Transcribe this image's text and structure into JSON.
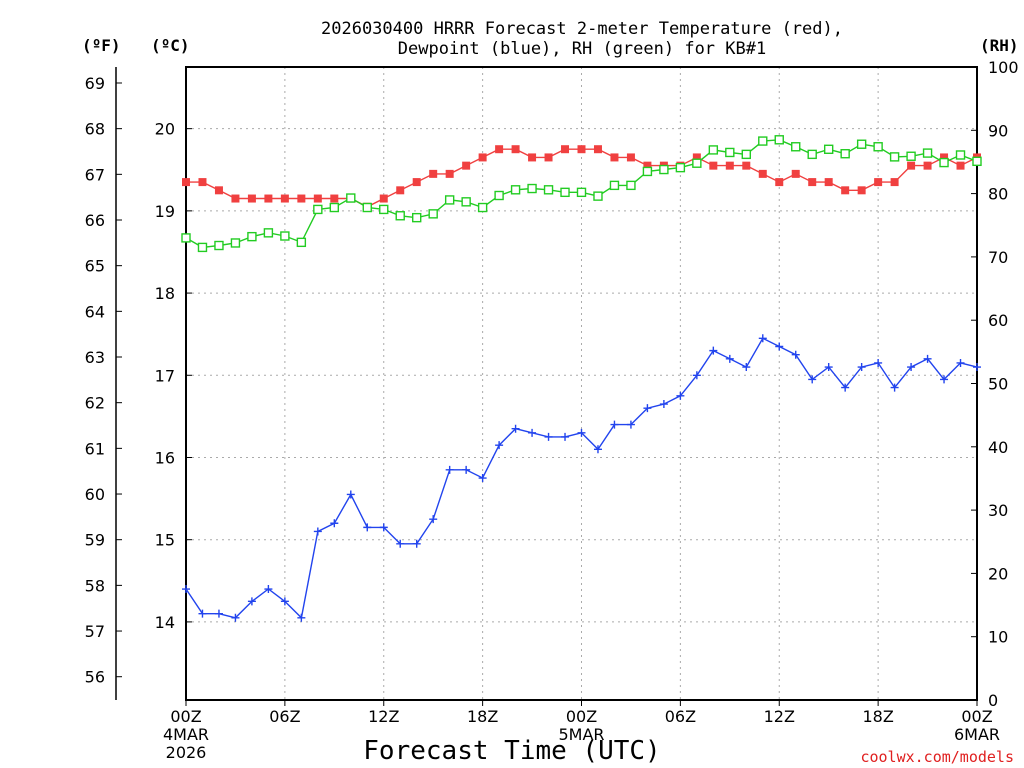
{
  "chart_data": {
    "type": "line",
    "title_line1": "2026030400 HRRR Forecast 2-meter Temperature (red),",
    "title_line2": "Dewpoint (blue), RH (green) for KB#1",
    "xlabel": "Forecast Time (UTC)",
    "credit": "coolwx.com/models",
    "units": {
      "fahrenheit": "(ºF)",
      "celsius": "(ºC)",
      "rh": "(RH)"
    },
    "x_ticks": [
      {
        "hour": 0,
        "label": "00Z",
        "sub1": "4MAR",
        "sub2": "2026"
      },
      {
        "hour": 6,
        "label": "06Z",
        "sub1": "",
        "sub2": ""
      },
      {
        "hour": 12,
        "label": "12Z",
        "sub1": "",
        "sub2": ""
      },
      {
        "hour": 18,
        "label": "18Z",
        "sub1": "",
        "sub2": ""
      },
      {
        "hour": 24,
        "label": "00Z",
        "sub1": "5MAR",
        "sub2": ""
      },
      {
        "hour": 30,
        "label": "06Z",
        "sub1": "",
        "sub2": ""
      },
      {
        "hour": 36,
        "label": "12Z",
        "sub1": "",
        "sub2": ""
      },
      {
        "hour": 42,
        "label": "18Z",
        "sub1": "",
        "sub2": ""
      },
      {
        "hour": 48,
        "label": "00Z",
        "sub1": "6MAR",
        "sub2": ""
      }
    ],
    "xlim": [
      0,
      48
    ],
    "celsius_axis": {
      "ylim": [
        13.05,
        20.75
      ],
      "ticks": [
        "14",
        "15",
        "16",
        "17",
        "18",
        "19",
        "20"
      ]
    },
    "fahrenheit_axis": {
      "ylim": [
        55.49,
        69.35
      ],
      "ticks": [
        "56",
        "57",
        "58",
        "59",
        "60",
        "61",
        "62",
        "63",
        "64",
        "65",
        "66",
        "67",
        "68",
        "69"
      ]
    },
    "rh_axis": {
      "ylim": [
        0,
        100
      ],
      "ticks": [
        "0",
        "10",
        "20",
        "30",
        "40",
        "50",
        "60",
        "70",
        "80",
        "90",
        "100"
      ]
    },
    "series": [
      {
        "name": "2-meter Temperature",
        "color": "#f04040",
        "marker": "filled-square",
        "axis": "celsius",
        "values": [
          19.35,
          19.35,
          19.25,
          19.15,
          19.15,
          19.15,
          19.15,
          19.15,
          19.15,
          19.15,
          19.15,
          19.05,
          19.15,
          19.25,
          19.35,
          19.45,
          19.45,
          19.55,
          19.65,
          19.75,
          19.75,
          19.65,
          19.65,
          19.75,
          19.75,
          19.75,
          19.65,
          19.65,
          19.55,
          19.55,
          19.55,
          19.65,
          19.55,
          19.55,
          19.55,
          19.45,
          19.35,
          19.45,
          19.35,
          19.35,
          19.25,
          19.25,
          19.35,
          19.35,
          19.55,
          19.55,
          19.65,
          19.55,
          19.65
        ]
      },
      {
        "name": "Dewpoint",
        "color": "#2244ee",
        "marker": "plus",
        "axis": "celsius",
        "values": [
          14.4,
          14.1,
          14.1,
          14.05,
          14.25,
          14.4,
          14.25,
          14.05,
          15.1,
          15.2,
          15.55,
          15.15,
          15.15,
          14.95,
          14.95,
          15.25,
          15.85,
          15.85,
          15.75,
          16.15,
          16.35,
          16.3,
          16.25,
          16.25,
          16.3,
          16.1,
          16.4,
          16.4,
          16.6,
          16.65,
          16.75,
          17.0,
          17.3,
          17.2,
          17.1,
          17.45,
          17.35,
          17.25,
          16.95,
          17.1,
          16.85,
          17.1,
          17.15,
          16.85,
          17.1,
          17.2,
          16.95,
          17.15,
          17.1
        ]
      },
      {
        "name": "RH",
        "color": "#22cc22",
        "marker": "open-square",
        "axis": "rh",
        "values": [
          73,
          71.5,
          71.8,
          72.2,
          73.2,
          73.8,
          73.3,
          72.3,
          77.5,
          77.8,
          79.3,
          77.8,
          77.5,
          76.5,
          76.2,
          76.8,
          79,
          78.7,
          77.8,
          79.7,
          80.6,
          80.8,
          80.6,
          80.2,
          80.2,
          79.6,
          81.3,
          81.3,
          83.5,
          83.8,
          84.1,
          84.8,
          86.9,
          86.5,
          86.2,
          88.3,
          88.5,
          87.4,
          86.2,
          87,
          86.3,
          87.8,
          87.4,
          85.8,
          85.9,
          86.4,
          84.9,
          86.1,
          85.1
        ]
      }
    ]
  }
}
